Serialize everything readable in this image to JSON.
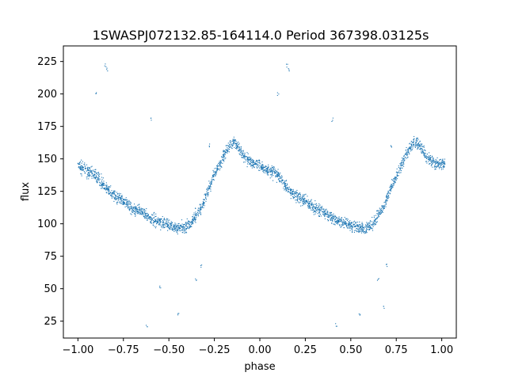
{
  "chart_data": {
    "type": "scatter",
    "title": "1SWASPJ072132.85-164114.0 Period 367398.03125s",
    "xlabel": "phase",
    "ylabel": "flux",
    "xlim": [
      -1.08,
      1.08
    ],
    "ylim": [
      12,
      237
    ],
    "x_ticks": [
      -1.0,
      -0.75,
      -0.5,
      -0.25,
      0.0,
      0.25,
      0.5,
      0.75,
      1.0
    ],
    "x_tick_labels": [
      "−1.00",
      "−0.75",
      "−0.50",
      "−0.25",
      "0.00",
      "0.25",
      "0.50",
      "0.75",
      "1.00"
    ],
    "y_ticks": [
      25,
      50,
      75,
      100,
      125,
      150,
      175,
      200,
      225
    ],
    "y_tick_labels": [
      "25",
      "50",
      "75",
      "100",
      "125",
      "150",
      "175",
      "200",
      "225"
    ],
    "grid": false,
    "marker_color": "#1f77b4",
    "series": [
      {
        "x": [
          -1.0,
          -0.98,
          -0.96,
          -0.94,
          -0.92,
          -0.9,
          -0.88,
          -0.86,
          -0.84,
          -0.82,
          -0.8,
          -0.78,
          -0.76,
          -0.74,
          -0.72,
          -0.7,
          -0.68,
          -0.66,
          -0.64,
          -0.62,
          -0.6,
          -0.58,
          -0.56,
          -0.54,
          -0.52,
          -0.5,
          -0.48,
          -0.46,
          -0.44,
          -0.42,
          -0.4,
          -0.38,
          -0.36,
          -0.34,
          -0.32,
          -0.3,
          -0.28,
          -0.26,
          -0.24,
          -0.22,
          -0.2,
          -0.18,
          -0.16,
          -0.14,
          -0.12,
          -0.1,
          -0.08,
          -0.06,
          -0.04,
          -0.02,
          0.0,
          0.02,
          0.04,
          0.06,
          0.08,
          0.1,
          0.12,
          0.14,
          0.16,
          0.18,
          0.2,
          0.22,
          0.24,
          0.26,
          0.28,
          0.3,
          0.32,
          0.34,
          0.36,
          0.38,
          0.4,
          0.42,
          0.44,
          0.46,
          0.48,
          0.5,
          0.52,
          0.54,
          0.56,
          0.58,
          0.6,
          0.62,
          0.64,
          0.66,
          0.68,
          0.7,
          0.72,
          0.74,
          0.76,
          0.78,
          0.8,
          0.82,
          0.84,
          0.86,
          0.88,
          0.9,
          0.92,
          0.94,
          0.96,
          0.98,
          1.0
        ],
        "y": [
          146,
          143,
          141,
          140,
          139,
          137,
          134,
          130,
          126,
          124,
          122,
          120,
          118,
          116,
          114,
          112,
          111,
          110,
          108,
          106,
          104,
          103,
          102,
          101,
          100,
          99,
          98,
          97,
          97,
          97,
          98,
          100,
          104,
          108,
          113,
          120,
          127,
          134,
          140,
          146,
          152,
          157,
          161,
          163,
          160,
          155,
          151,
          149,
          147,
          146,
          146,
          143,
          141,
          140,
          139,
          137,
          134,
          130,
          126,
          124,
          122,
          120,
          118,
          116,
          114,
          112,
          111,
          110,
          108,
          106,
          104,
          103,
          102,
          101,
          100,
          99,
          98,
          97,
          97,
          97,
          98,
          100,
          104,
          108,
          113,
          120,
          127,
          134,
          140,
          146,
          152,
          157,
          161,
          163,
          160,
          155,
          151,
          149,
          147,
          146,
          146
        ]
      }
    ],
    "outliers": {
      "x": [
        -0.85,
        -0.84,
        0.15,
        0.16,
        -0.9,
        -0.6,
        -0.45,
        -0.35,
        -0.62,
        0.1,
        0.4,
        0.55,
        0.65,
        0.42,
        -0.55,
        0.68,
        -0.32,
        0.7,
        -0.28,
        0.72
      ],
      "y": [
        222,
        219,
        222,
        219,
        200,
        180,
        30,
        57,
        22,
        200,
        180,
        30,
        57,
        22,
        52,
        35,
        68,
        68,
        160,
        160
      ]
    }
  }
}
